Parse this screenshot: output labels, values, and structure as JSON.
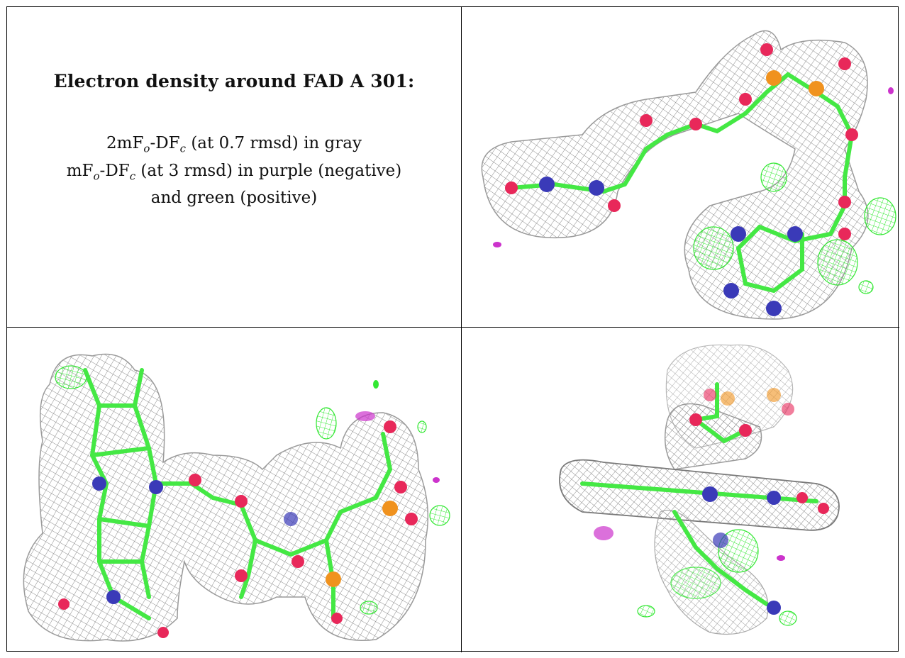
{
  "legend": {
    "title": "Electron density around FAD A 301:",
    "line1_prefix": "2mF",
    "line1_sub1": "o",
    "line1_mid": "-DF",
    "line1_sub2": "c",
    "line1_suffix": " (at 0.7 rmsd) in gray",
    "line2_prefix": "mF",
    "line2_sub1": "o",
    "line2_mid": "-DF",
    "line2_sub2": "c",
    "line2_suffix": " (at 3 rmsd) in purple (negative)",
    "line3": "and green (positive)"
  },
  "colors": {
    "mesh_2fofc": "#8a8a8a",
    "mesh_positive": "#33e833",
    "mesh_negative": "#cc33cc",
    "carbon": "#44e844",
    "oxygen": "#e8285a",
    "nitrogen": "#3a3ab8",
    "phosphorus": "#f0921e"
  },
  "views": [
    {
      "name": "view-1",
      "icon": "molecule-density-icon"
    },
    {
      "name": "view-2",
      "icon": "molecule-density-icon"
    },
    {
      "name": "view-3",
      "icon": "molecule-density-icon"
    }
  ]
}
